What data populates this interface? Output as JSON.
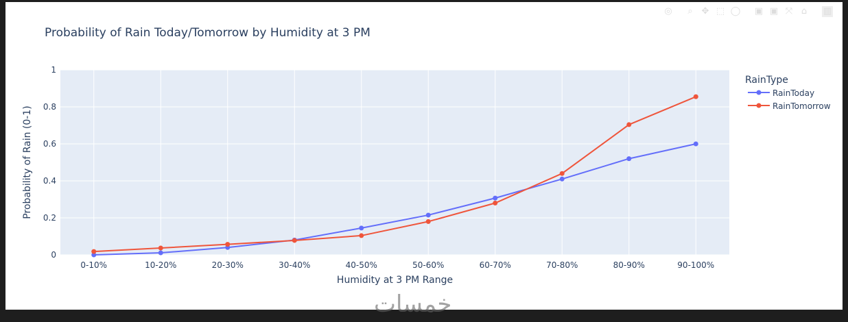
{
  "chart_data": {
    "type": "line",
    "title": "Probability of Rain Today/Tomorrow by Humidity at 3 PM",
    "xlabel": "Humidity at 3 PM Range",
    "ylabel": "Probability of Rain (0-1)",
    "categories": [
      "0-10%",
      "10-20%",
      "20-30%",
      "30-40%",
      "40-50%",
      "50-60%",
      "60-70%",
      "70-80%",
      "80-90%",
      "90-100%"
    ],
    "ylim": [
      0,
      1
    ],
    "yticks": [
      0,
      0.2,
      0.4,
      0.6,
      0.8,
      1
    ],
    "ytick_labels": [
      "0",
      "0.2",
      "0.4",
      "0.6",
      "0.8",
      "1"
    ],
    "grid": true,
    "legend_title": "RainType",
    "legend_position": "right",
    "series": [
      {
        "name": "RainToday",
        "color": "#636efa",
        "values": [
          0.0,
          0.011,
          0.04,
          0.08,
          0.145,
          0.215,
          0.307,
          0.41,
          0.52,
          0.6
        ]
      },
      {
        "name": "RainTomorrow",
        "color": "#ef553b",
        "values": [
          0.018,
          0.037,
          0.057,
          0.078,
          0.104,
          0.18,
          0.28,
          0.44,
          0.704,
          0.855
        ]
      }
    ]
  },
  "watermark": "خمسات"
}
